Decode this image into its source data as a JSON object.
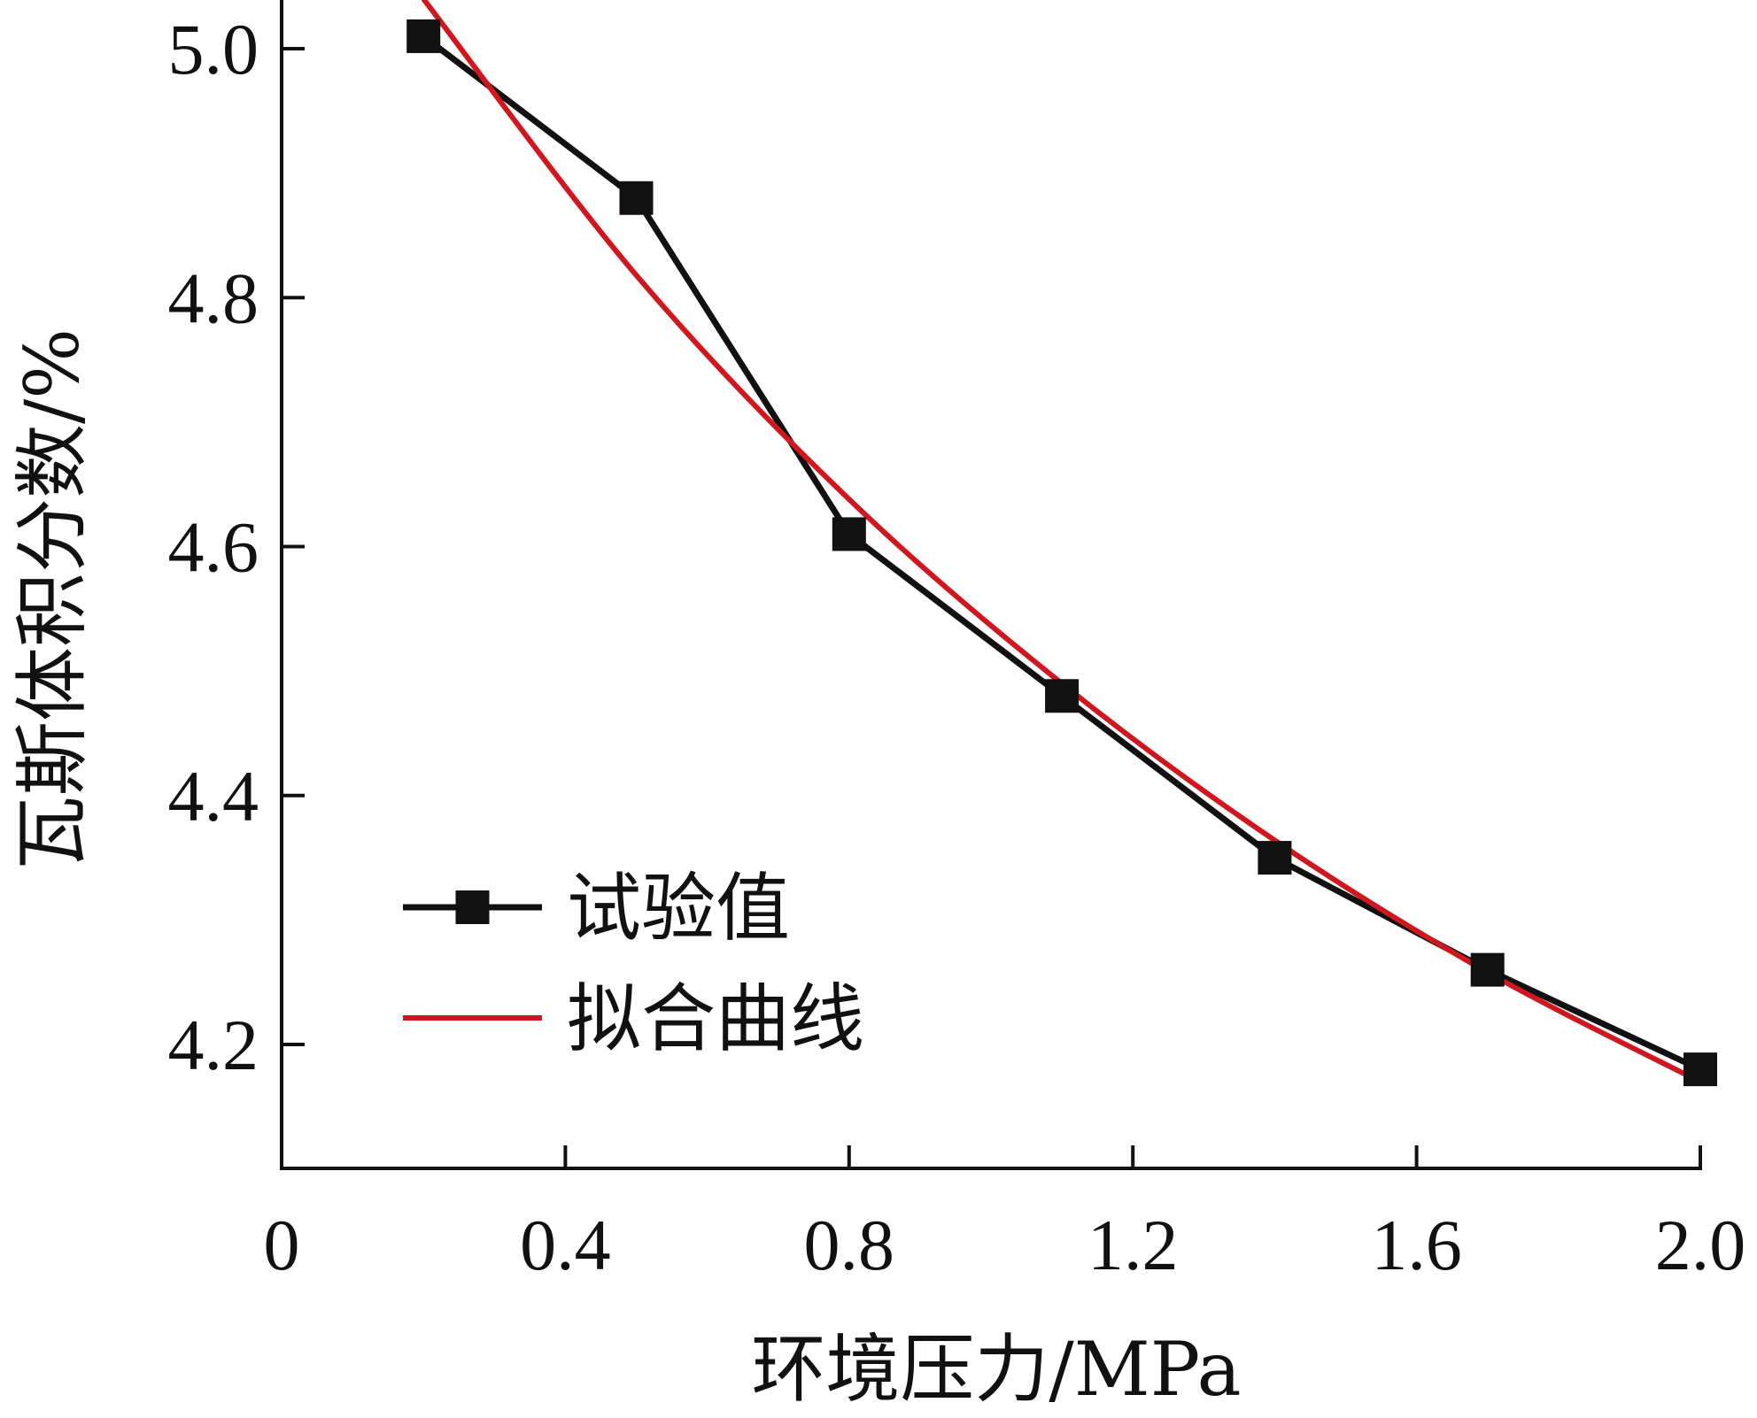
{
  "chart_data": {
    "type": "line",
    "title": "",
    "xlabel": "环境压力/MPa",
    "ylabel": "瓦斯体积分数/%",
    "xlim": [
      0,
      2.0
    ],
    "ylim": [
      4.1,
      5.03
    ],
    "x_ticks": [
      {
        "value": 0,
        "label": "0"
      },
      {
        "value": 0.4,
        "label": "0.4"
      },
      {
        "value": 0.8,
        "label": "0.8"
      },
      {
        "value": 1.2,
        "label": "1.2"
      },
      {
        "value": 1.6,
        "label": "1.6"
      },
      {
        "value": 2.0,
        "label": "2.0"
      }
    ],
    "y_ticks": [
      {
        "value": 4.2,
        "label": "4.2"
      },
      {
        "value": 4.4,
        "label": "4.4"
      },
      {
        "value": 4.6,
        "label": "4.6"
      },
      {
        "value": 4.8,
        "label": "4.8"
      },
      {
        "value": 5.0,
        "label": "5.0"
      }
    ],
    "grid": false,
    "legend_position": "left",
    "series": [
      {
        "name": "试验值",
        "style": "line-marker",
        "marker": "square",
        "color": "#111111",
        "x": [
          0.2,
          0.5,
          0.8,
          1.1,
          1.4,
          1.7,
          2.0
        ],
        "y": [
          5.01,
          4.88,
          4.61,
          4.48,
          4.35,
          4.26,
          4.18
        ]
      },
      {
        "name": "拟合曲线",
        "style": "line",
        "color": "#d0161e",
        "x": [
          0.2,
          0.5,
          0.8,
          1.1,
          1.4,
          1.7,
          2.0
        ],
        "y": [
          5.04,
          4.818,
          4.638,
          4.49,
          4.364,
          4.258,
          4.17
        ]
      }
    ]
  }
}
